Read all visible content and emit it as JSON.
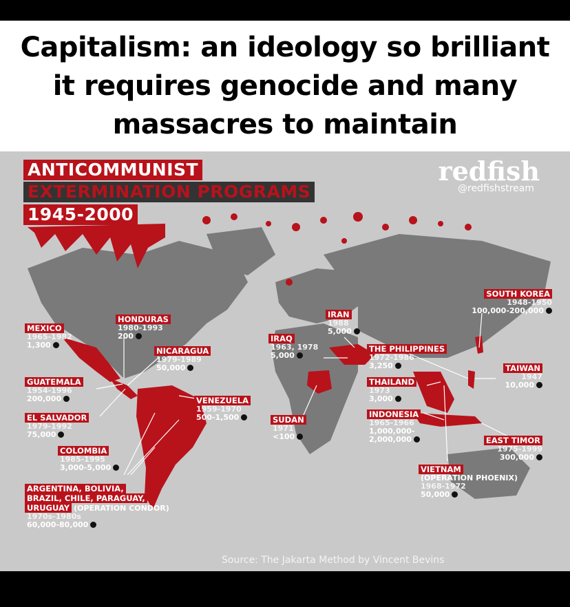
{
  "caption": "Capitalism: an ideology so brilliant it requires genocide and many massacres to maintain",
  "poster": {
    "title_line1": "ANTICOMMUNIST",
    "title_line2": "EXTERMINATION PROGRAMS",
    "title_line3": "1945-2000",
    "brand": "redfish",
    "handle": "@redfishstream",
    "source": "Source: The Jakarta Method by Vincent Bevins"
  },
  "colors": {
    "accent_red": "#b8121b",
    "land_gray": "#7a7a7a",
    "ocean_gray": "#c9c9c9"
  },
  "labels": {
    "mexico": {
      "name": "MEXICO",
      "years": "1965-1982",
      "count": "1,300"
    },
    "honduras": {
      "name": "HONDURAS",
      "years": "1980-1993",
      "count": "200"
    },
    "nicaragua": {
      "name": "NICARAGUA",
      "years": "1979-1989",
      "count": "50,000"
    },
    "guatemala": {
      "name": "GUATEMALA",
      "years": "1954-1996",
      "count": "200,000"
    },
    "el_salvador": {
      "name": "EL SALVADOR",
      "years": "1979-1992",
      "count": "75,000"
    },
    "venezuela": {
      "name": "VENEZUELA",
      "years": "1959-1970",
      "count": "500-1,500"
    },
    "colombia": {
      "name": "COLOMBIA",
      "years": "1985-1995",
      "count": "3,000-5,000"
    },
    "condor": {
      "name1": "ARGENTINA, BOLIVIA,",
      "name2": "BRAZIL, CHILE, PARAGUAY,",
      "name3": "URUGUAY",
      "op": "(OPERATION CONDOR)",
      "years": "1970s-1980s",
      "count": "60,000-80,000"
    },
    "iraq": {
      "name": "IRAQ",
      "years": "1963, 1978",
      "count": "5,000"
    },
    "iran": {
      "name": "IRAN",
      "years": "1988",
      "count": "5,000"
    },
    "sudan": {
      "name": "SUDAN",
      "years": "1971",
      "count": "<100"
    },
    "philippines": {
      "name": "THE PHILIPPINES",
      "years": "1972-1986",
      "count": "3,250"
    },
    "thailand": {
      "name": "THAILAND",
      "years": "1973",
      "count": "3,000"
    },
    "indonesia": {
      "name": "INDONESIA",
      "years": "1965-1966",
      "count1": "1,000,000-",
      "count2": "2,000,000"
    },
    "south_korea": {
      "name": "SOUTH KOREA",
      "years": "1948-1950",
      "count": "100,000-200,000"
    },
    "taiwan": {
      "name": "TAIWAN",
      "years": "1947",
      "count": "10,000"
    },
    "east_timor": {
      "name": "EAST TIMOR",
      "years": "1975-1999",
      "count": "300,000"
    },
    "vietnam": {
      "name": "VIETNAM",
      "op": "(OPERATION PHOENIX)",
      "years": "1968-1972",
      "count": "50,000"
    }
  }
}
